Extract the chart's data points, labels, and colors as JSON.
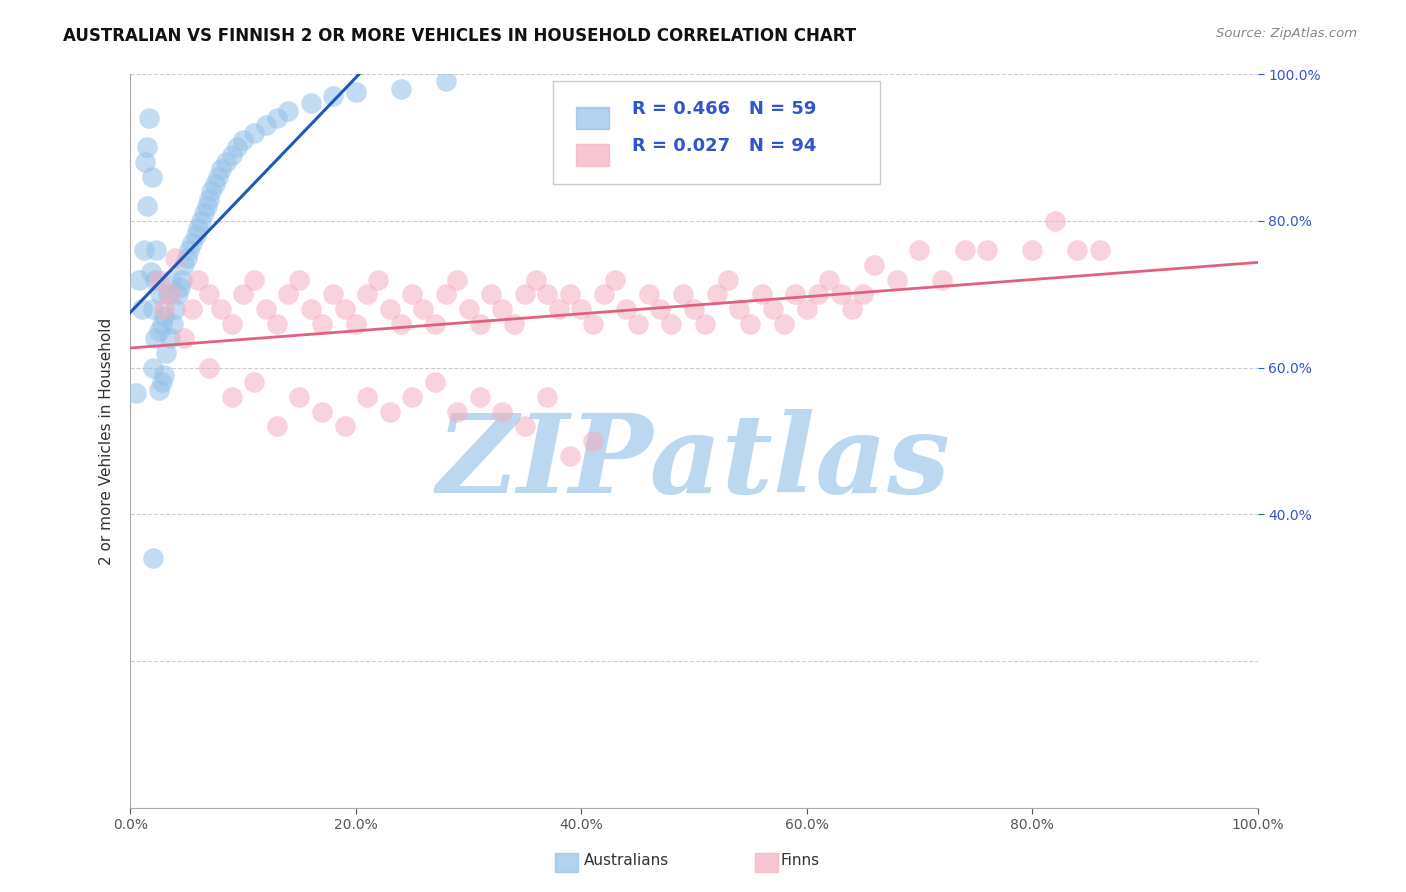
{
  "title": "AUSTRALIAN VS FINNISH 2 OR MORE VEHICLES IN HOUSEHOLD CORRELATION CHART",
  "source": "Source: ZipAtlas.com",
  "ylabel": "2 or more Vehicles in Household",
  "xlim": [
    0.0,
    1.0
  ],
  "ylim": [
    0.0,
    1.0
  ],
  "australian_color": "#92c0e8",
  "finnish_color": "#f4aec0",
  "australian_line_color": "#2255bb",
  "finnish_line_color": "#e06080",
  "legend_color": "#3355cc",
  "background_color": "#ffffff",
  "grid_color": "#cccccc",
  "watermark_text": "ZIPatlas",
  "watermark_color": "#bcd8f0",
  "aus_R": 0.466,
  "aus_N": 59,
  "fin_R": 0.027,
  "fin_N": 94,
  "right_ytick_vals": [
    1.0,
    0.8,
    0.6,
    0.4
  ],
  "right_ytick_labels": [
    "100.0%",
    "80.0%",
    "60.0%",
    "40.0%"
  ],
  "aus_x": [
    0.005,
    0.008,
    0.01,
    0.012,
    0.013,
    0.015,
    0.015,
    0.017,
    0.018,
    0.019,
    0.02,
    0.02,
    0.022,
    0.022,
    0.023,
    0.025,
    0.025,
    0.026,
    0.028,
    0.028,
    0.03,
    0.03,
    0.032,
    0.033,
    0.035,
    0.036,
    0.038,
    0.04,
    0.042,
    0.044,
    0.046,
    0.048,
    0.05,
    0.052,
    0.055,
    0.058,
    0.06,
    0.063,
    0.065,
    0.068,
    0.07,
    0.072,
    0.075,
    0.078,
    0.08,
    0.085,
    0.09,
    0.095,
    0.1,
    0.11,
    0.12,
    0.13,
    0.14,
    0.16,
    0.18,
    0.2,
    0.24,
    0.28,
    0.02
  ],
  "aus_y": [
    0.565,
    0.72,
    0.68,
    0.76,
    0.88,
    0.82,
    0.9,
    0.94,
    0.73,
    0.86,
    0.6,
    0.68,
    0.64,
    0.72,
    0.76,
    0.57,
    0.65,
    0.7,
    0.58,
    0.66,
    0.59,
    0.67,
    0.62,
    0.7,
    0.64,
    0.72,
    0.66,
    0.68,
    0.7,
    0.71,
    0.72,
    0.74,
    0.75,
    0.76,
    0.77,
    0.78,
    0.79,
    0.8,
    0.81,
    0.82,
    0.83,
    0.84,
    0.85,
    0.86,
    0.87,
    0.88,
    0.89,
    0.9,
    0.91,
    0.92,
    0.93,
    0.94,
    0.95,
    0.96,
    0.97,
    0.975,
    0.98,
    0.99,
    0.34
  ],
  "fin_x": [
    0.025,
    0.03,
    0.035,
    0.04,
    0.048,
    0.055,
    0.06,
    0.07,
    0.08,
    0.09,
    0.1,
    0.11,
    0.12,
    0.13,
    0.14,
    0.15,
    0.16,
    0.17,
    0.18,
    0.19,
    0.2,
    0.21,
    0.22,
    0.23,
    0.24,
    0.25,
    0.26,
    0.27,
    0.28,
    0.29,
    0.3,
    0.31,
    0.32,
    0.33,
    0.34,
    0.35,
    0.36,
    0.37,
    0.38,
    0.39,
    0.4,
    0.41,
    0.42,
    0.43,
    0.44,
    0.45,
    0.46,
    0.47,
    0.48,
    0.49,
    0.5,
    0.51,
    0.52,
    0.53,
    0.54,
    0.55,
    0.56,
    0.57,
    0.58,
    0.59,
    0.6,
    0.61,
    0.62,
    0.63,
    0.64,
    0.65,
    0.66,
    0.68,
    0.7,
    0.72,
    0.74,
    0.76,
    0.8,
    0.82,
    0.84,
    0.86,
    0.07,
    0.09,
    0.11,
    0.13,
    0.15,
    0.17,
    0.19,
    0.21,
    0.23,
    0.25,
    0.27,
    0.29,
    0.31,
    0.33,
    0.35,
    0.37,
    0.39,
    0.41
  ],
  "fin_y": [
    0.72,
    0.68,
    0.7,
    0.75,
    0.64,
    0.68,
    0.72,
    0.7,
    0.68,
    0.66,
    0.7,
    0.72,
    0.68,
    0.66,
    0.7,
    0.72,
    0.68,
    0.66,
    0.7,
    0.68,
    0.66,
    0.7,
    0.72,
    0.68,
    0.66,
    0.7,
    0.68,
    0.66,
    0.7,
    0.72,
    0.68,
    0.66,
    0.7,
    0.68,
    0.66,
    0.7,
    0.72,
    0.7,
    0.68,
    0.7,
    0.68,
    0.66,
    0.7,
    0.72,
    0.68,
    0.66,
    0.7,
    0.68,
    0.66,
    0.7,
    0.68,
    0.66,
    0.7,
    0.72,
    0.68,
    0.66,
    0.7,
    0.68,
    0.66,
    0.7,
    0.68,
    0.7,
    0.72,
    0.7,
    0.68,
    0.7,
    0.74,
    0.72,
    0.76,
    0.72,
    0.76,
    0.76,
    0.76,
    0.8,
    0.76,
    0.76,
    0.6,
    0.56,
    0.58,
    0.52,
    0.56,
    0.54,
    0.52,
    0.56,
    0.54,
    0.56,
    0.58,
    0.54,
    0.56,
    0.54,
    0.52,
    0.56,
    0.48,
    0.5
  ]
}
